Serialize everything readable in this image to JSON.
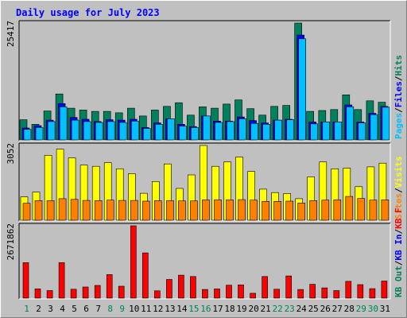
{
  "chart_data": {
    "type": "bar",
    "title": "Daily usage for July 2023",
    "days": [
      "1",
      "2",
      "3",
      "4",
      "5",
      "6",
      "7",
      "8",
      "9",
      "10",
      "11",
      "12",
      "13",
      "14",
      "15",
      "16",
      "17",
      "18",
      "19",
      "20",
      "21",
      "22",
      "23",
      "24",
      "25",
      "26",
      "27",
      "28",
      "29",
      "30",
      "31"
    ],
    "weekend_days": [
      "1",
      "8",
      "9",
      "15",
      "16",
      "22",
      "23",
      "29",
      "30"
    ],
    "colors": {
      "hits": "#00805c",
      "files": "#0000ff",
      "pages": "#00c0ff",
      "visits": "#ffff00",
      "sites": "#ff8000",
      "kb_in": "#ff0000",
      "weekday_label": "#000000",
      "weekend_label": "#00805c"
    },
    "panels": [
      {
        "name": "top",
        "max_label": "25417",
        "max": 25417,
        "legend": [
          {
            "text": "Hits",
            "color": "#00805c"
          },
          {
            "text": "/",
            "color": "#000000"
          },
          {
            "text": "Files",
            "color": "#0000ff"
          },
          {
            "text": "/",
            "color": "#000000"
          },
          {
            "text": "Pages",
            "color": "#00c0ff"
          }
        ],
        "series": [
          {
            "name": "Hits",
            "key": "hits",
            "values": [
              4400,
              3400,
              6300,
              10000,
              6900,
              6500,
              6200,
              6200,
              5900,
              6900,
              5200,
              6500,
              7300,
              8100,
              5400,
              7200,
              6900,
              7800,
              8700,
              6800,
              5400,
              7300,
              7500,
              25417,
              6200,
              6400,
              6600,
              9800,
              6600,
              8500,
              8200
            ]
          },
          {
            "name": "Files",
            "key": "files",
            "values": [
              2600,
              3100,
              4300,
              7900,
              4900,
              4500,
              4000,
              4400,
              4300,
              4500,
              2700,
              3700,
              4600,
              3400,
              2900,
              5200,
              4100,
              4100,
              5000,
              4200,
              3700,
              4300,
              4500,
              22800,
              3900,
              3900,
              3900,
              7600,
              3900,
              5800,
              7300
            ]
          },
          {
            "name": "Pages",
            "key": "pages",
            "values": [
              2300,
              2700,
              4000,
              7200,
              4300,
              4000,
              3800,
              4000,
              3800,
              4100,
              2500,
              3400,
              4600,
              3000,
              2700,
              5200,
              3800,
              4000,
              4600,
              3600,
              3400,
              4300,
              4400,
              22000,
              3500,
              3900,
              3900,
              7200,
              3700,
              5500,
              7100
            ]
          }
        ]
      },
      {
        "name": "middle",
        "max_label": "3052",
        "max": 3052,
        "legend": [
          {
            "text": "Visits",
            "color": "#ffff00"
          },
          {
            "text": "/",
            "color": "#000000"
          },
          {
            "text": "Sites",
            "color": "#ff8000"
          }
        ],
        "series": [
          {
            "name": "Visits",
            "key": "visits",
            "values": [
              950,
              1150,
              2650,
              2900,
              2550,
              2250,
              2200,
              2350,
              2100,
              1900,
              1100,
              1580,
              2300,
              1300,
              1850,
              3052,
              2200,
              2380,
              2580,
              1990,
              1270,
              1130,
              1090,
              880,
              1770,
              2380,
              2100,
              2130,
              1370,
              2180,
              2330
            ]
          },
          {
            "name": "Sites",
            "key": "sites",
            "values": [
              690,
              800,
              800,
              880,
              850,
              810,
              800,
              820,
              810,
              810,
              780,
              800,
              800,
              790,
              790,
              830,
              830,
              830,
              840,
              820,
              770,
              770,
              780,
              700,
              800,
              820,
              830,
              970,
              890,
              820,
              830
            ]
          }
        ]
      },
      {
        "name": "bottom",
        "max_label": "2671862",
        "max": 2671862,
        "legend": [
          {
            "text": "KB F",
            "color": "#ff0000"
          },
          {
            "text": "/",
            "color": "#000000"
          },
          {
            "text": "KB In",
            "color": "#0000ff"
          },
          {
            "text": "/",
            "color": "#000000"
          },
          {
            "text": "KB Out",
            "color": "#00805c"
          }
        ],
        "series": [
          {
            "name": "KB F",
            "key": "kb_in",
            "values": [
              1310000,
              340000,
              280000,
              1310000,
              330000,
              410000,
              470000,
              870000,
              440000,
              2671862,
              1670000,
              270000,
              690000,
              850000,
              800000,
              320000,
              340000,
              480000,
              490000,
              180000,
              800000,
              330000,
              820000,
              320000,
              510000,
              380000,
              280000,
              620000,
              500000,
              350000,
              630000
            ]
          }
        ]
      }
    ]
  }
}
